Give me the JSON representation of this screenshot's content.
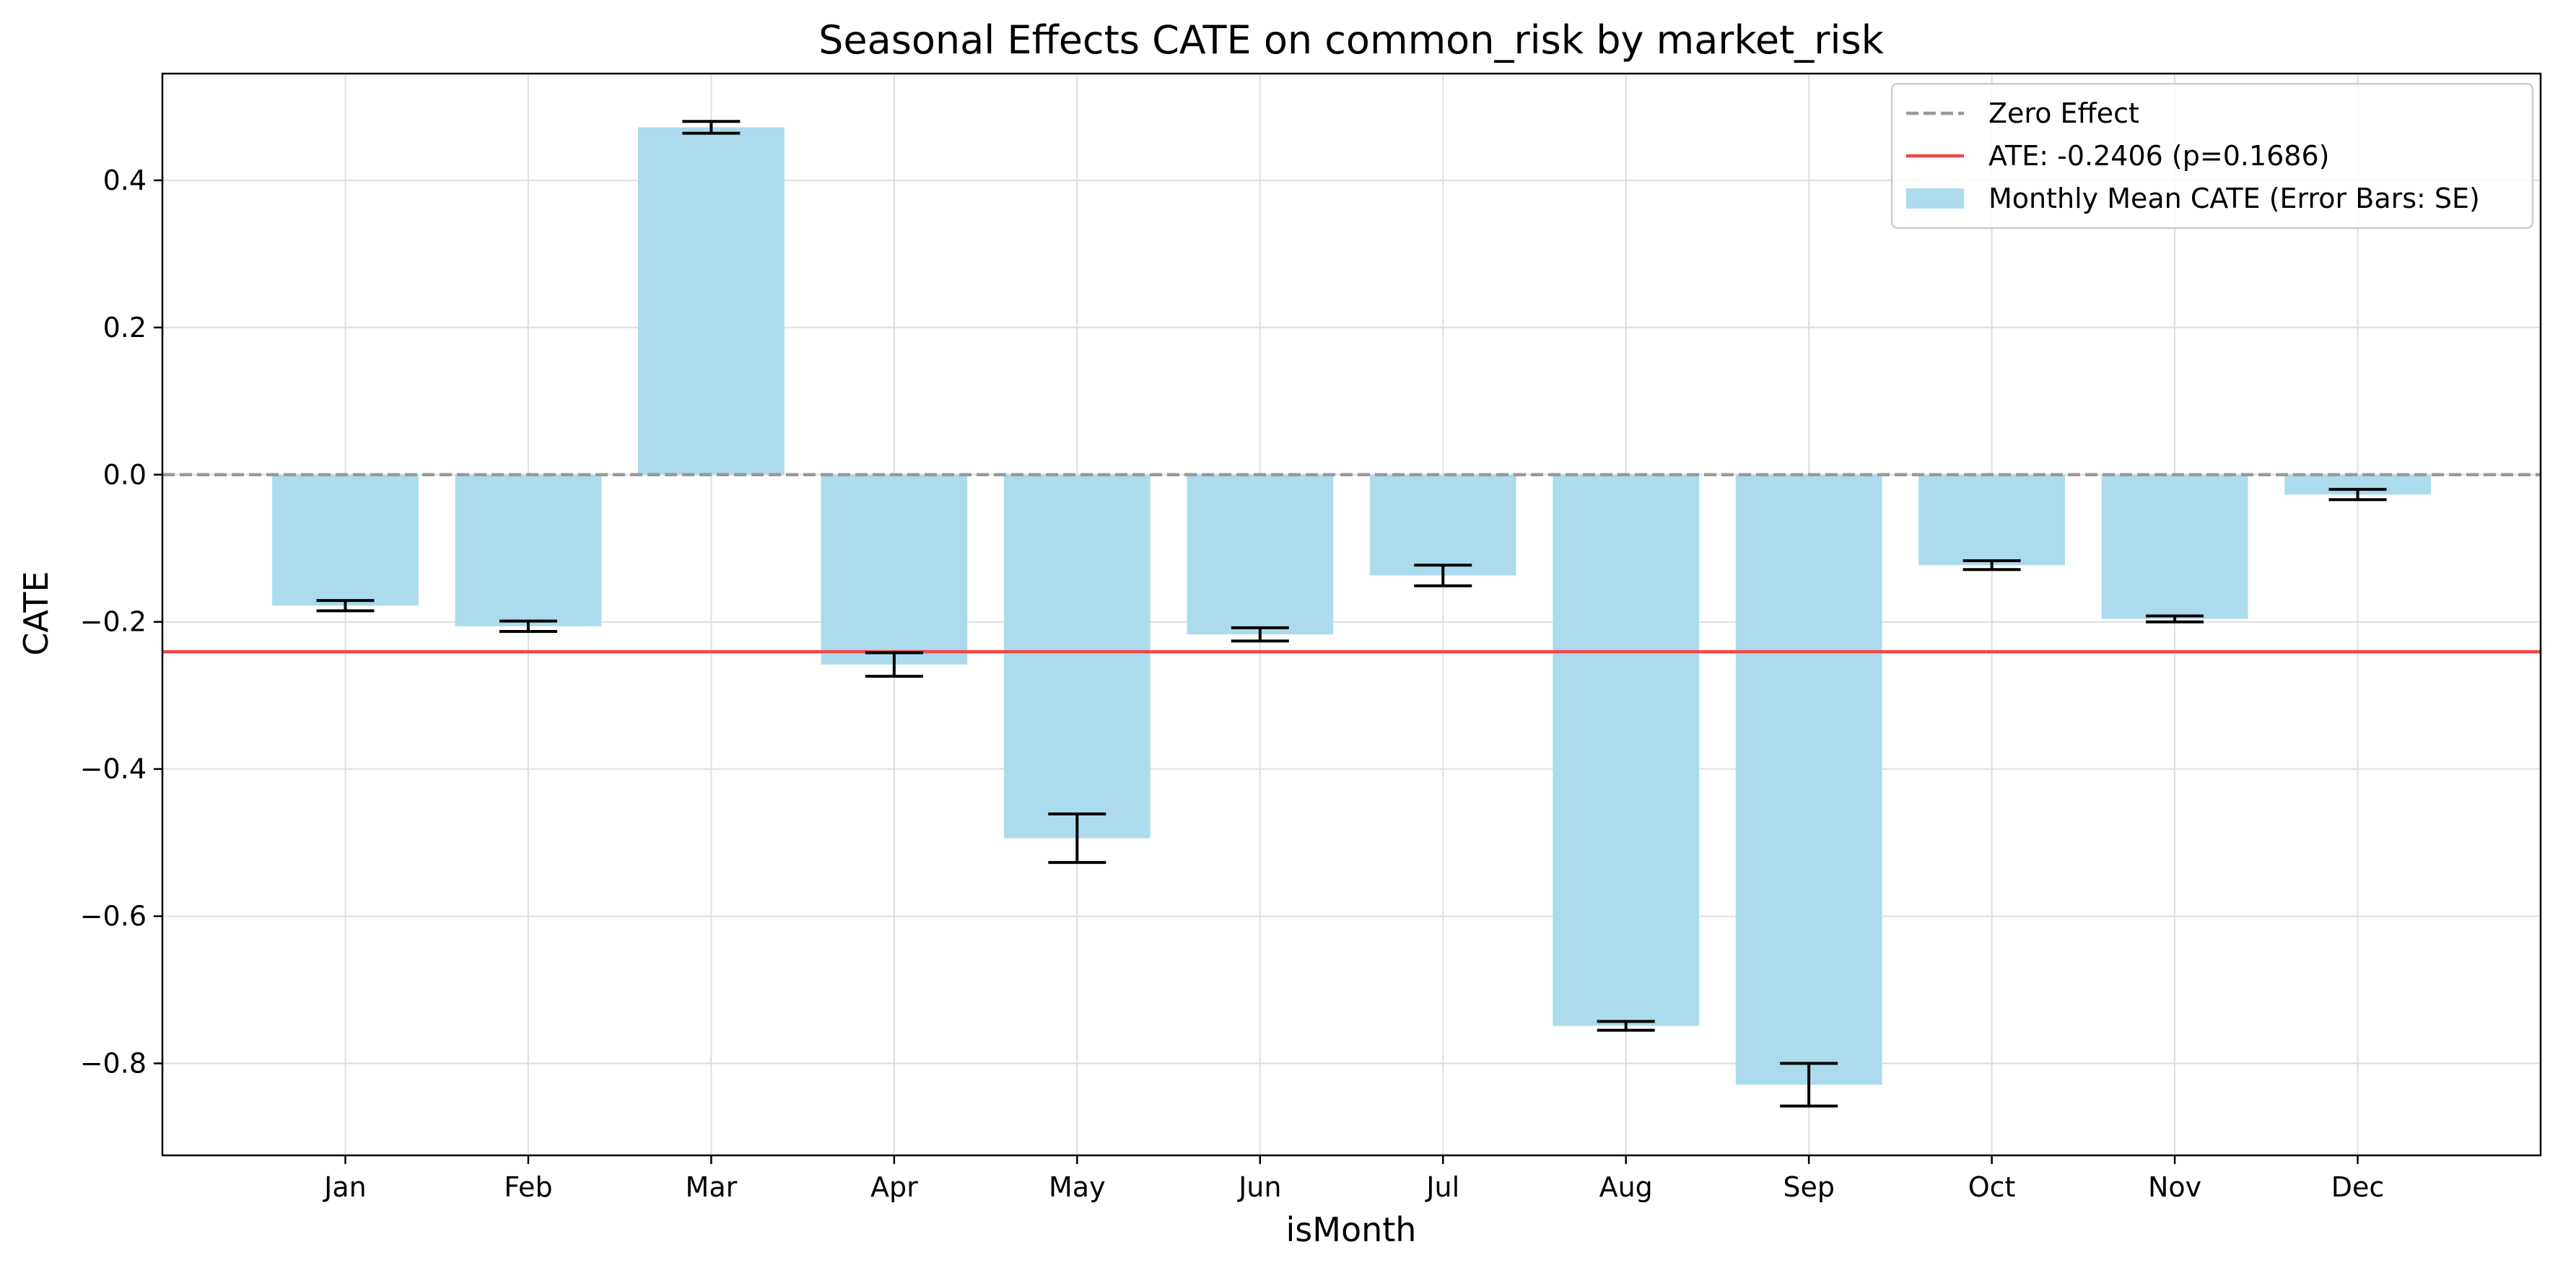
{
  "chart_data": {
    "type": "bar",
    "title": "Seasonal Effects CATE  on common_risk by market_risk",
    "xlabel": "isMonth",
    "ylabel": "CATE",
    "categories": [
      "Jan",
      "Feb",
      "Mar",
      "Apr",
      "May",
      "Jun",
      "Jul",
      "Aug",
      "Sep",
      "Oct",
      "Nov",
      "Dec"
    ],
    "values": [
      -0.178,
      -0.206,
      0.472,
      -0.258,
      -0.494,
      -0.217,
      -0.137,
      -0.749,
      -0.829,
      -0.123,
      -0.196,
      -0.027
    ],
    "errors": [
      0.007,
      0.007,
      0.008,
      0.016,
      0.033,
      0.009,
      0.014,
      0.006,
      0.029,
      0.006,
      0.004,
      0.007
    ],
    "yticks": [
      0.4,
      0.2,
      0.0,
      -0.2,
      -0.4,
      -0.6,
      -0.8
    ],
    "ytick_labels": [
      "0.4",
      "0.2",
      "0.0",
      "−0.2",
      "−0.4",
      "−0.6",
      "−0.8"
    ],
    "ylim": [
      -0.925,
      0.545
    ],
    "grid": true,
    "reference_lines": {
      "zero": {
        "value": 0.0,
        "color": "#999999",
        "style": "dashed"
      },
      "ate": {
        "value": -0.2406,
        "color": "#f04747",
        "style": "solid"
      }
    },
    "bar_color": "#abdbed",
    "legend": {
      "position": "top-right",
      "entries": [
        {
          "label": "Zero Effect",
          "kind": "dashed-line",
          "color": "#999999"
        },
        {
          "label": "ATE: -0.2406 (p=0.1686)",
          "kind": "line",
          "color": "#f04747"
        },
        {
          "label": "Monthly Mean CATE (Error Bars: SE)",
          "kind": "patch",
          "color": "#abdbed"
        }
      ]
    }
  }
}
